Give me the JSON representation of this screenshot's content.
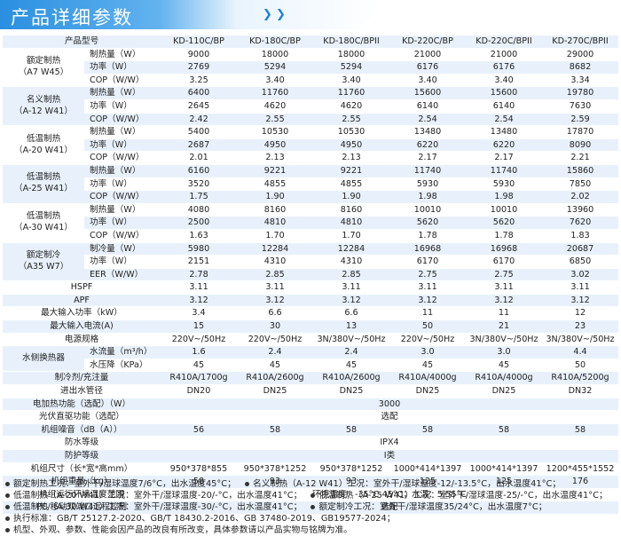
{
  "header": {
    "title": "产品详细参数",
    "chevrons": "❯ ❯"
  },
  "colors": {
    "banner": "#2a8fe0",
    "stripe": "#e8f1fb"
  },
  "table": {
    "model_label": "产品型号",
    "models": [
      "KD-110C/BP",
      "KD-180C/BP",
      "KD-180C/BPII",
      "KD-220C/BP",
      "KD-220C/BPII",
      "KD-270C/BPII"
    ],
    "groups": [
      {
        "name": "额定制热",
        "cond": "（A7 W45）",
        "rows": [
          {
            "label": "制热量（W）",
            "values": [
              "9000",
              "18000",
              "18000",
              "21000",
              "21000",
              "29000"
            ]
          },
          {
            "label": "功率（W）",
            "values": [
              "2769",
              "5294",
              "5294",
              "6176",
              "6176",
              "8682"
            ]
          },
          {
            "label": "COP（W/W）",
            "values": [
              "3.25",
              "3.40",
              "3.40",
              "3.40",
              "3.40",
              "3.34"
            ]
          }
        ]
      },
      {
        "name": "名义制热",
        "cond": "（A-12 W41）",
        "rows": [
          {
            "label": "制热量（W）",
            "values": [
              "6400",
              "11760",
              "11760",
              "15600",
              "15600",
              "19780"
            ]
          },
          {
            "label": "功率（W）",
            "values": [
              "2645",
              "4620",
              "4620",
              "6140",
              "6140",
              "7630"
            ]
          },
          {
            "label": "COP（W/W）",
            "values": [
              "2.42",
              "2.55",
              "2.55",
              "2.54",
              "2.54",
              "2.59"
            ]
          }
        ]
      },
      {
        "name": "低温制热",
        "cond": "（A-20 W41）",
        "rows": [
          {
            "label": "制热量（W）",
            "values": [
              "5400",
              "10530",
              "10530",
              "13480",
              "13480",
              "17870"
            ]
          },
          {
            "label": "功率（W）",
            "values": [
              "2687",
              "4950",
              "4950",
              "6220",
              "6220",
              "8090"
            ]
          },
          {
            "label": "COP（W/W）",
            "values": [
              "2.01",
              "2.13",
              "2.13",
              "2.17",
              "2.17",
              "2.21"
            ]
          }
        ]
      },
      {
        "name": "低温制热",
        "cond": "（A-25 W41）",
        "rows": [
          {
            "label": "制热量（W）",
            "values": [
              "6160",
              "9221",
              "9221",
              "11740",
              "11740",
              "15860"
            ]
          },
          {
            "label": "功率（W）",
            "values": [
              "3520",
              "4855",
              "4855",
              "5930",
              "5930",
              "7850"
            ]
          },
          {
            "label": "COP（W/W）",
            "values": [
              "1.75",
              "1.90",
              "1.90",
              "1.98",
              "1.98",
              "2.02"
            ]
          }
        ]
      },
      {
        "name": "低温制热",
        "cond": "（A-30 W41）",
        "rows": [
          {
            "label": "制热量（W）",
            "values": [
              "4080",
              "8160",
              "8160",
              "10010",
              "10010",
              "13960"
            ]
          },
          {
            "label": "功率（W）",
            "values": [
              "2500",
              "4810",
              "4810",
              "5620",
              "5620",
              "7620"
            ]
          },
          {
            "label": "COP（W/W）",
            "values": [
              "1.63",
              "1.70",
              "1.70",
              "1.78",
              "1.78",
              "1.83"
            ]
          }
        ]
      },
      {
        "name": "额定制冷",
        "cond": "（A35 W7）",
        "rows": [
          {
            "label": "制冷量（W）",
            "values": [
              "5980",
              "12284",
              "12284",
              "16968",
              "16968",
              "20687"
            ]
          },
          {
            "label": "功率（W）",
            "values": [
              "2151",
              "4310",
              "4310",
              "6170",
              "6170",
              "6850"
            ]
          },
          {
            "label": "EER（W/W）",
            "values": [
              "2.78",
              "2.85",
              "2.85",
              "2.75",
              "2.75",
              "3.02"
            ]
          }
        ]
      }
    ],
    "rows_a": [
      {
        "label": "HSPF",
        "values": [
          "3.11",
          "3.11",
          "3.11",
          "3.11",
          "3.11",
          "3.11"
        ]
      },
      {
        "label": "APF",
        "values": [
          "3.12",
          "3.12",
          "3.12",
          "3.12",
          "3.12",
          "3.12"
        ]
      },
      {
        "label": "最大输入功率（kW）",
        "values": [
          "3.4",
          "6.6",
          "6.6",
          "11",
          "11",
          "12"
        ]
      },
      {
        "label": "最大输入电流(A)",
        "values": [
          "15",
          "30",
          "13",
          "50",
          "21",
          "23"
        ]
      },
      {
        "label": "电源规格",
        "values": [
          "220V~/50Hz",
          "220V~/50Hz",
          "3N/380V~/50Hz",
          "220V~/50Hz",
          "3N/380V~/50Hz",
          "3N/380V~/50Hz"
        ]
      }
    ],
    "water": {
      "name": "水侧换热器",
      "rows": [
        {
          "label": "水流量（m³/h）",
          "values": [
            "1.6",
            "2.4",
            "2.4",
            "3.0",
            "3.0",
            "4.4"
          ]
        },
        {
          "label": "水压降（KPa）",
          "values": [
            "45",
            "45",
            "45",
            "45",
            "45",
            "50"
          ]
        }
      ]
    },
    "rows_b": [
      {
        "label": "制冷剂/充注量",
        "values": [
          "R410A/1700g",
          "R410A/2600g",
          "R410A/2600g",
          "R410A/4000g",
          "R410A/4000g",
          "R410A/5200g"
        ]
      },
      {
        "label": "进出水管径",
        "values": [
          "DN20",
          "DN25",
          "DN25",
          "DN25",
          "DN25",
          "DN32"
        ]
      }
    ],
    "span_rows": [
      {
        "label": "电加热功能（选配）（W）",
        "value": "3000"
      },
      {
        "label": "光伏直驱功能（选配）",
        "value": "选配"
      }
    ],
    "noise": {
      "label": "机组噪音（dB（A））",
      "values": [
        "56",
        "58",
        "58",
        "58",
        "58",
        "58"
      ]
    },
    "span_rows2": [
      {
        "label": "防水等级",
        "value": "IPX4"
      },
      {
        "label": "防护等级",
        "value": "I类"
      }
    ],
    "rows_c": [
      {
        "label": "机组尺寸（长*宽*高mm）",
        "values": [
          "950*378*855",
          "950*378*1252",
          "950*378*1252",
          "1000*414*1397",
          "1000*414*1397",
          "1200*455*1552"
        ]
      },
      {
        "label": "机组重量（kg）",
        "values": [
          "58",
          "93",
          "93",
          "125",
          "125",
          "176"
        ]
      }
    ],
    "span_rows3": [
      {
        "label": "机组运行环境温度范围",
        "value": "环境温度：-35°C-45°C；水温：5-55°C"
      },
      {
        "label": "PC/移动双端口远程控制",
        "value": "选配"
      }
    ]
  },
  "notes": [
    [
      "额定制热工况：室外干/湿球温度7/6°C，出水温度45°C；",
      "名义制热（A-12 W41）工况：室外干/湿球温度-12/-13.5°C，出水温度41°C；"
    ],
    [
      "低温制热（A-20 W41）工况：室外干/湿球温度-20/-°C，出水温度41°C；",
      "低温制热（A-25 W41）工况：室外干/湿球温度-25/-°C，出水温度41°C；"
    ],
    [
      "低温制热（A-30 W41）工况：室外干/湿球温度-30/-°C，出水温度41°C；",
      "额定制冷工况：室外干/湿球温度35/24°C，出水温度7°C；"
    ],
    [
      "执行标准：GB/T 25127.2-2020、GB/T 18430.2-2016、GB 37480-2019、GB19577-2024；"
    ],
    [
      "机型、外观、参数、性能会因产品的改良有所改变，具体参数请以产品实物与铭牌为准。"
    ]
  ]
}
